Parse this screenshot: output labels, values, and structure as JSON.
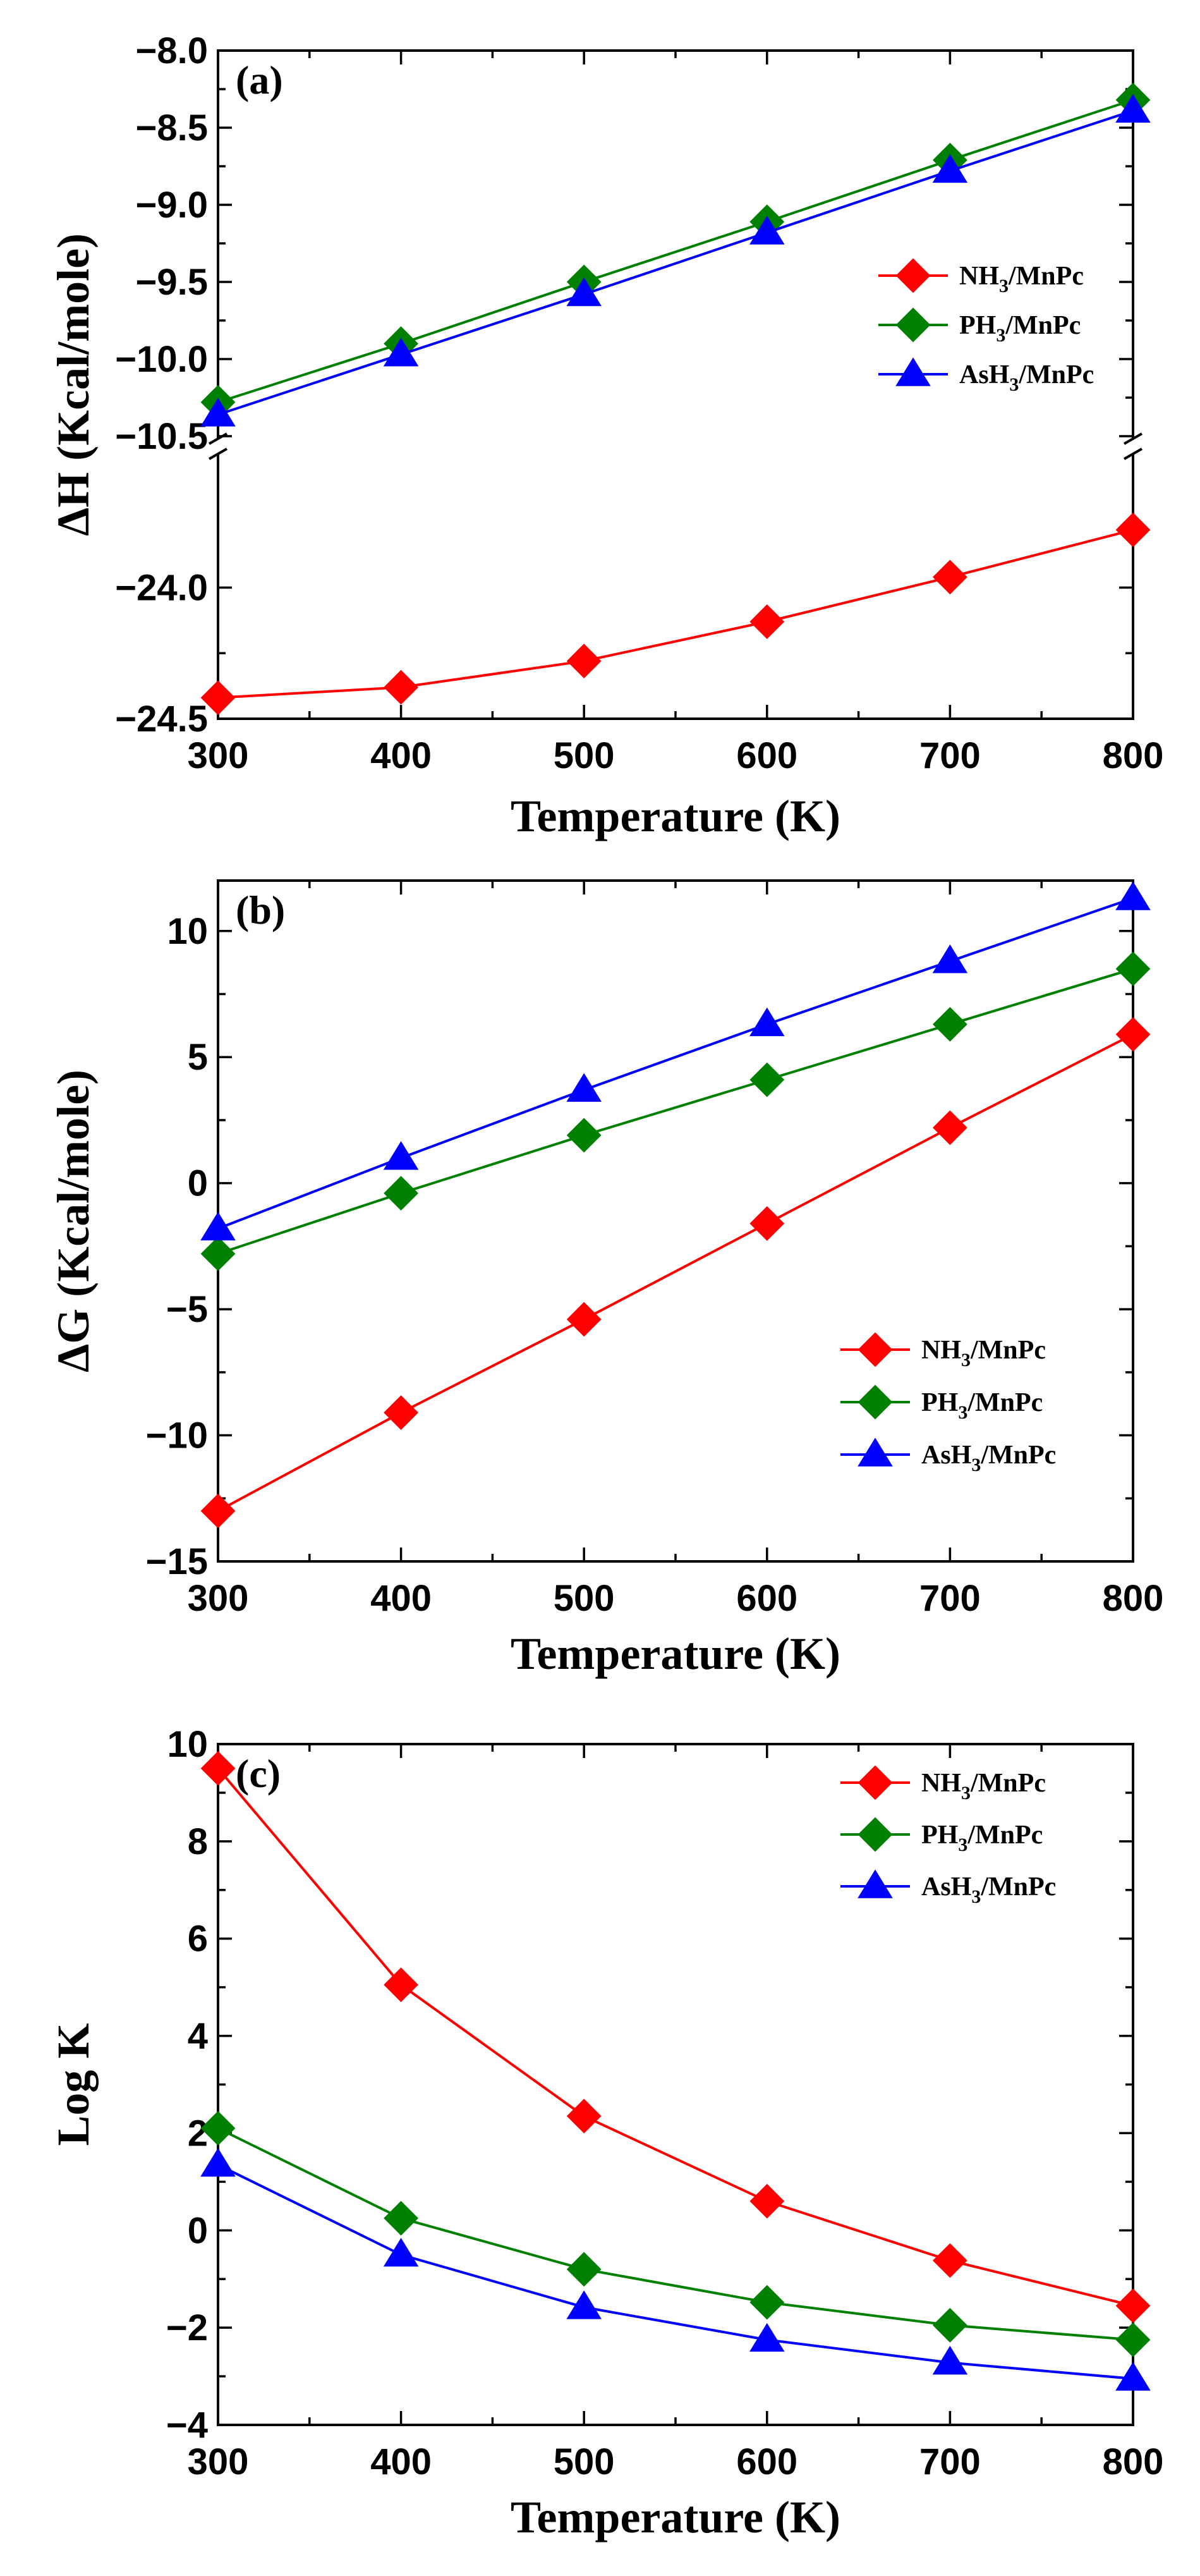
{
  "colors": {
    "NH3": "#ff0000",
    "PH3": "#008000",
    "AsH3": "#0000ff"
  },
  "chart_data": [
    {
      "type": "line",
      "panel_label": "(a)",
      "xlabel": "Temperature (K)",
      "ylabel": "ΔH (Kcal/mole)",
      "xlim": [
        300,
        800
      ],
      "xticks": [
        "300",
        "400",
        "500",
        "600",
        "700",
        "800"
      ],
      "broken_y_axis": true,
      "upper_ylim": [
        -10.5,
        -8.0
      ],
      "upper_yticks": [
        "-8.0",
        "-8.5",
        "-9.0",
        "-9.5",
        "-10.0",
        "-10.5"
      ],
      "lower_ylim": [
        -24.5,
        -23.5
      ],
      "lower_yticks": [
        "-24.0",
        "-24.5"
      ],
      "legend_position": "right",
      "x": [
        300,
        400,
        500,
        600,
        700,
        800
      ],
      "series": [
        {
          "name": "NH3/MnPc",
          "formula": {
            "base": "NH",
            "sub": "3",
            "suffix": "/MnPc"
          },
          "color_key": "NH3",
          "marker": "diamond",
          "values": [
            -24.42,
            -24.38,
            -24.28,
            -24.13,
            -23.96,
            -23.78
          ]
        },
        {
          "name": "PH3/MnPc",
          "formula": {
            "base": "PH",
            "sub": "3",
            "suffix": "/MnPc"
          },
          "color_key": "PH3",
          "marker": "diamond",
          "values": [
            -10.28,
            -9.9,
            -9.5,
            -9.11,
            -8.71,
            -8.32
          ]
        },
        {
          "name": "AsH3/MnPc",
          "formula": {
            "base": "AsH",
            "sub": "3",
            "suffix": "/MnPc"
          },
          "color_key": "AsH3",
          "marker": "triangle",
          "values": [
            -10.36,
            -9.97,
            -9.58,
            -9.18,
            -8.78,
            -8.39
          ]
        }
      ]
    },
    {
      "type": "line",
      "panel_label": "(b)",
      "xlabel": "Temperature (K)",
      "ylabel": "ΔG (Kcal/mole)",
      "xlim": [
        300,
        800
      ],
      "xticks": [
        "300",
        "400",
        "500",
        "600",
        "700",
        "800"
      ],
      "ylim": [
        -15,
        12
      ],
      "yticks": [
        "-15",
        "-10",
        "-5",
        "0",
        "5",
        "10"
      ],
      "legend_position": "lower-right",
      "x": [
        300,
        400,
        500,
        600,
        700,
        800
      ],
      "series": [
        {
          "name": "NH3/MnPc",
          "formula": {
            "base": "NH",
            "sub": "3",
            "suffix": "/MnPc"
          },
          "color_key": "NH3",
          "marker": "diamond",
          "values": [
            -13.0,
            -9.1,
            -5.4,
            -1.6,
            2.2,
            5.9
          ]
        },
        {
          "name": "PH3/MnPc",
          "formula": {
            "base": "PH",
            "sub": "3",
            "suffix": "/MnPc"
          },
          "color_key": "PH3",
          "marker": "diamond",
          "values": [
            -2.8,
            -0.4,
            1.9,
            4.1,
            6.3,
            8.5
          ]
        },
        {
          "name": "AsH3/MnPc",
          "formula": {
            "base": "AsH",
            "sub": "3",
            "suffix": "/MnPc"
          },
          "color_key": "AsH3",
          "marker": "triangle",
          "values": [
            -1.8,
            1.0,
            3.7,
            6.3,
            8.8,
            11.3
          ]
        }
      ]
    },
    {
      "type": "line",
      "panel_label": "(c)",
      "xlabel": "Temperature (K)",
      "ylabel": "Log K",
      "xlim": [
        300,
        800
      ],
      "xticks": [
        "300",
        "400",
        "500",
        "600",
        "700",
        "800"
      ],
      "ylim": [
        -4,
        10
      ],
      "yticks": [
        "-4",
        "-2",
        "0",
        "2",
        "4",
        "6",
        "8",
        "10"
      ],
      "legend_position": "top-right",
      "x": [
        300,
        400,
        500,
        600,
        700,
        800
      ],
      "series": [
        {
          "name": "NH3/MnPc",
          "formula": {
            "base": "NH",
            "sub": "3",
            "suffix": "/MnPc"
          },
          "color_key": "NH3",
          "marker": "diamond",
          "values": [
            9.5,
            5.05,
            2.35,
            0.6,
            -0.62,
            -1.55
          ]
        },
        {
          "name": "PH3/MnPc",
          "formula": {
            "base": "PH",
            "sub": "3",
            "suffix": "/MnPc"
          },
          "color_key": "PH3",
          "marker": "diamond",
          "values": [
            2.1,
            0.25,
            -0.8,
            -1.48,
            -1.95,
            -2.25
          ]
        },
        {
          "name": "AsH3/MnPc",
          "formula": {
            "base": "AsH",
            "sub": "3",
            "suffix": "/MnPc"
          },
          "color_key": "AsH3",
          "marker": "triangle",
          "values": [
            1.35,
            -0.5,
            -1.58,
            -2.25,
            -2.72,
            -3.05
          ]
        }
      ]
    }
  ]
}
